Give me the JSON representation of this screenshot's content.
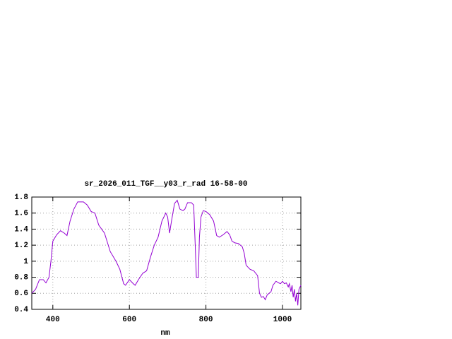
{
  "chart_data": {
    "type": "line",
    "title": "sr_2026_011_TGF__y03_r_rad 16-58-00",
    "xlabel": "nm",
    "x": [
      345,
      355,
      365,
      375,
      382,
      390,
      395,
      400,
      410,
      420,
      430,
      437,
      445,
      455,
      465,
      480,
      490,
      500,
      510,
      520,
      535,
      550,
      565,
      575,
      585,
      590,
      600,
      610,
      615,
      625,
      635,
      645,
      655,
      665,
      675,
      685,
      695,
      700,
      705,
      710,
      718,
      725,
      732,
      740,
      745,
      752,
      762,
      768,
      772,
      775,
      780,
      783,
      787,
      793,
      800,
      810,
      820,
      828,
      835,
      845,
      855,
      862,
      868,
      875,
      885,
      895,
      900,
      905,
      915,
      925,
      935,
      940,
      945,
      950,
      955,
      960,
      970,
      975,
      983,
      990,
      995,
      1000,
      1005,
      1010,
      1015,
      1018,
      1022,
      1025,
      1028,
      1031,
      1034,
      1037,
      1040,
      1043,
      1048
    ],
    "series": [
      {
        "color": "#9400d3",
        "values": [
          0.6,
          0.65,
          0.77,
          0.77,
          0.73,
          0.8,
          1.0,
          1.25,
          1.33,
          1.38,
          1.35,
          1.32,
          1.5,
          1.65,
          1.74,
          1.74,
          1.7,
          1.62,
          1.6,
          1.45,
          1.35,
          1.12,
          1.0,
          0.9,
          0.72,
          0.7,
          0.77,
          0.72,
          0.7,
          0.78,
          0.85,
          0.88,
          1.05,
          1.2,
          1.3,
          1.5,
          1.6,
          1.55,
          1.35,
          1.5,
          1.72,
          1.76,
          1.65,
          1.63,
          1.65,
          1.73,
          1.73,
          1.7,
          1.2,
          0.8,
          0.8,
          1.3,
          1.55,
          1.63,
          1.62,
          1.58,
          1.5,
          1.32,
          1.3,
          1.33,
          1.37,
          1.33,
          1.25,
          1.23,
          1.22,
          1.18,
          1.1,
          0.95,
          0.9,
          0.88,
          0.82,
          0.6,
          0.55,
          0.56,
          0.52,
          0.58,
          0.62,
          0.7,
          0.75,
          0.73,
          0.72,
          0.75,
          0.72,
          0.73,
          0.68,
          0.72,
          0.62,
          0.7,
          0.55,
          0.65,
          0.5,
          0.6,
          0.45,
          0.65,
          0.7
        ]
      }
    ],
    "xlim": [
      345,
      1048
    ],
    "xticks": [
      400,
      600,
      800,
      1000
    ],
    "ylim": [
      0.4,
      1.8
    ],
    "yticks": [
      0.4,
      0.6,
      0.8,
      1,
      1.2,
      1.4,
      1.6,
      1.8
    ],
    "grid": true
  }
}
